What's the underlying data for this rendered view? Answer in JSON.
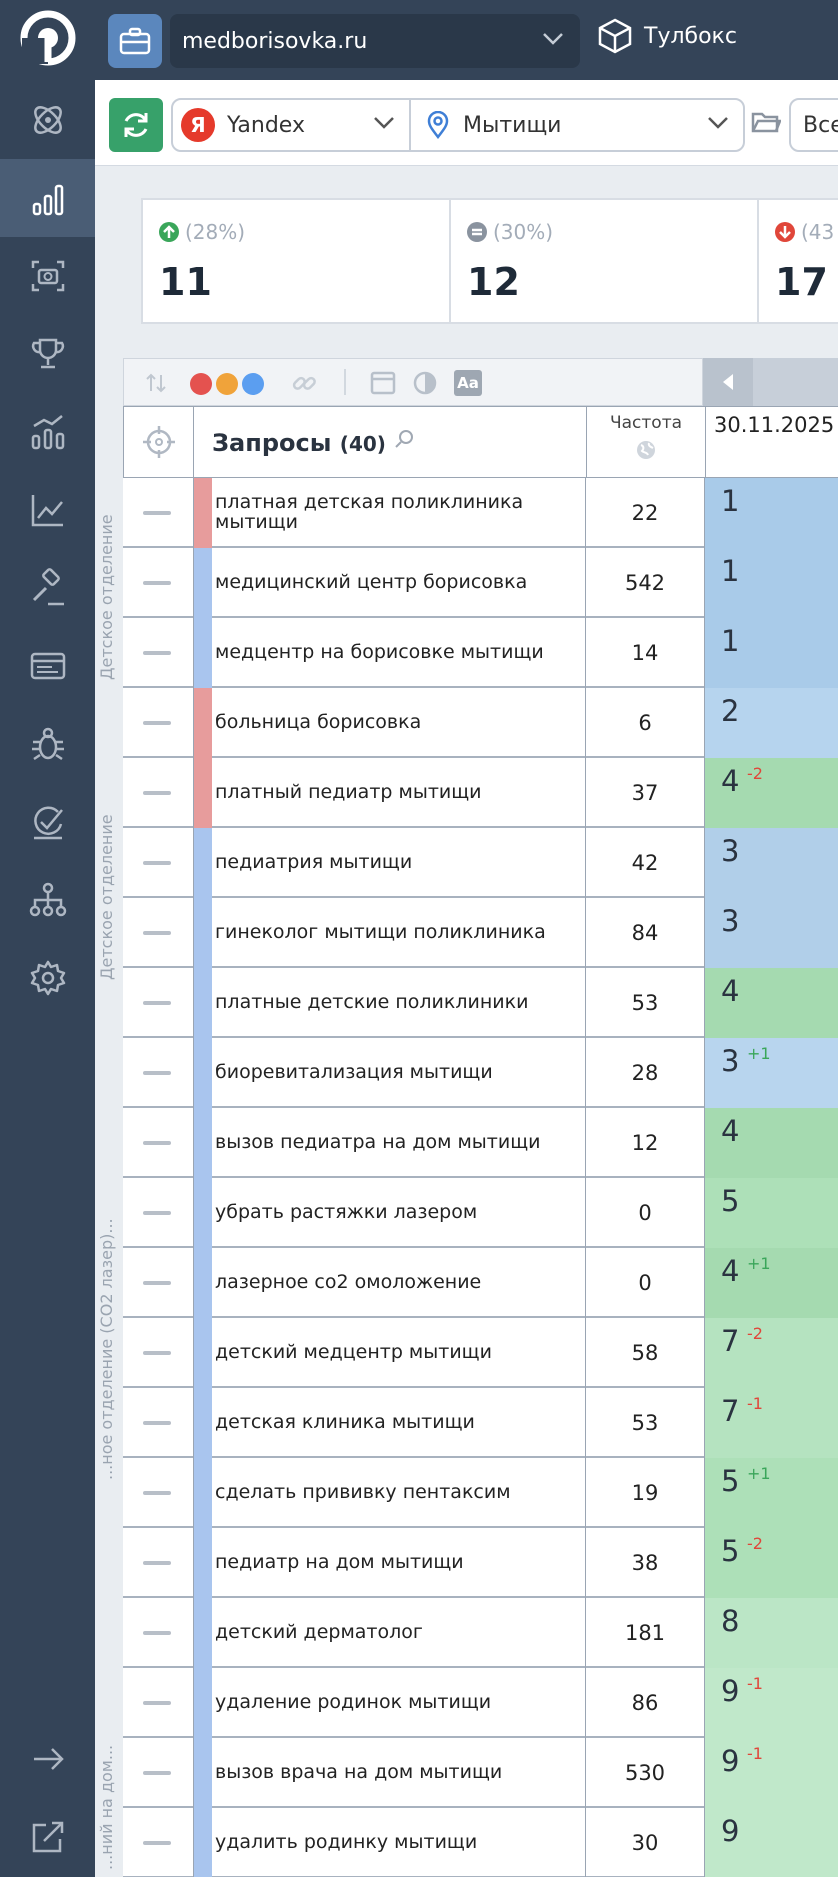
{
  "topbar": {
    "site": "medborisovka.ru",
    "toolbox_label": "Тулбокс"
  },
  "sidebar": {
    "items": [
      {
        "icon": "orbit-icon",
        "active": false
      },
      {
        "icon": "bar-chart-icon",
        "active": true
      },
      {
        "icon": "screenshot-icon",
        "active": false
      },
      {
        "icon": "trophy-icon",
        "active": false
      },
      {
        "icon": "analytics-icon",
        "active": false
      },
      {
        "icon": "trend-icon",
        "active": false
      },
      {
        "icon": "gavel-icon",
        "active": false
      },
      {
        "icon": "cards-icon",
        "active": false
      },
      {
        "icon": "bug-icon",
        "active": false
      },
      {
        "icon": "check-circle-icon",
        "active": false
      },
      {
        "icon": "sitemap-icon",
        "active": false
      },
      {
        "icon": "settings-icon",
        "active": false
      }
    ],
    "bottom": [
      {
        "icon": "arrow-right-icon"
      },
      {
        "icon": "external-link-icon"
      }
    ]
  },
  "filters": {
    "engine": "Yandex",
    "engine_logo": "Я",
    "region": "Мытищи",
    "all_label": "Все"
  },
  "stats": [
    {
      "pct": "(28%)",
      "value": "11",
      "color": "#3aa65a",
      "kind": "up"
    },
    {
      "pct": "(30%)",
      "value": "12",
      "color": "#8a939f",
      "kind": "same"
    },
    {
      "pct": "(43",
      "value": "17",
      "color": "#e0463a",
      "kind": "down"
    }
  ],
  "table": {
    "header": {
      "queries_label": "Запросы",
      "queries_count": "(40)",
      "freq_label": "Частота",
      "date": "30.11.2025"
    },
    "group_labels": [
      "Детское отделение",
      "Детское отделение",
      "...ное отделение (CO2 лазер)...",
      "...ний на дом..."
    ],
    "rows": [
      {
        "query": "платная детская поликлиника мытищи",
        "freq": "22",
        "pos": "1",
        "delta": "",
        "bar": "#e79c9c",
        "bg": "#a9cbe9"
      },
      {
        "query": "медицинский центр борисовка",
        "freq": "542",
        "pos": "1",
        "delta": "",
        "bar": "#a9c5ee",
        "bg": "#a9cbe9"
      },
      {
        "query": "медцентр на борисовке мытищи",
        "freq": "14",
        "pos": "1",
        "delta": "",
        "bar": "#a9c5ee",
        "bg": "#a9cbe9"
      },
      {
        "query": "больница борисовка",
        "freq": "6",
        "pos": "2",
        "delta": "",
        "bar": "#e79c9c",
        "bg": "#b6d4ee"
      },
      {
        "query": "платный педиатр мытищи",
        "freq": "37",
        "pos": "4",
        "delta": "-2",
        "bar": "#e79c9c",
        "bg": "#a5dab0"
      },
      {
        "query": "педиатрия мытищи",
        "freq": "42",
        "pos": "3",
        "delta": "",
        "bar": "#a9c5ee",
        "bg": "#b1cfe9"
      },
      {
        "query": "гинеколог мытищи поликлиника",
        "freq": "84",
        "pos": "3",
        "delta": "",
        "bar": "#a9c5ee",
        "bg": "#b1cfe9"
      },
      {
        "query": "платные детские поликлиники",
        "freq": "53",
        "pos": "4",
        "delta": "",
        "bar": "#a9c5ee",
        "bg": "#a5dab0"
      },
      {
        "query": "биоревитализация мытищи",
        "freq": "28",
        "pos": "3",
        "delta": "+1",
        "bar": "#a9c5ee",
        "bg": "#b8d5ee"
      },
      {
        "query": "вызов педиатра на дом мытищи",
        "freq": "12",
        "pos": "4",
        "delta": "",
        "bar": "#a9c5ee",
        "bg": "#a5dab0"
      },
      {
        "query": "убрать растяжки лазером",
        "freq": "0",
        "pos": "5",
        "delta": "",
        "bar": "#a9c5ee",
        "bg": "#ade0b8"
      },
      {
        "query": "лазерное со2 омоложение",
        "freq": "0",
        "pos": "4",
        "delta": "+1",
        "bar": "#a9c5ee",
        "bg": "#a5dab0"
      },
      {
        "query": "детский медцентр мытищи",
        "freq": "58",
        "pos": "7",
        "delta": "-2",
        "bar": "#a9c5ee",
        "bg": "#b5e3c0"
      },
      {
        "query": "детская клиника мытищи",
        "freq": "53",
        "pos": "7",
        "delta": "-1",
        "bar": "#a9c5ee",
        "bg": "#b5e3c0"
      },
      {
        "query": "сделать прививку пентаксим",
        "freq": "19",
        "pos": "5",
        "delta": "+1",
        "bar": "#a9c5ee",
        "bg": "#ade0b8"
      },
      {
        "query": "педиатр на дом мытищи",
        "freq": "38",
        "pos": "5",
        "delta": "-2",
        "bar": "#a9c5ee",
        "bg": "#ade0b8"
      },
      {
        "query": "детский дерматолог",
        "freq": "181",
        "pos": "8",
        "delta": "",
        "bar": "#a9c5ee",
        "bg": "#bbe6c6"
      },
      {
        "query": "удаление родинок мытищи",
        "freq": "86",
        "pos": "9",
        "delta": "-1",
        "bar": "#a9c5ee",
        "bg": "#c0e8ca"
      },
      {
        "query": "вызов врача на дом мытищи",
        "freq": "530",
        "pos": "9",
        "delta": "-1",
        "bar": "#a9c5ee",
        "bg": "#c0e8ca"
      },
      {
        "query": "удалить родинку мытищи",
        "freq": "30",
        "pos": "9",
        "delta": "",
        "bar": "#a9c5ee",
        "bg": "#c0e8ca"
      }
    ]
  }
}
